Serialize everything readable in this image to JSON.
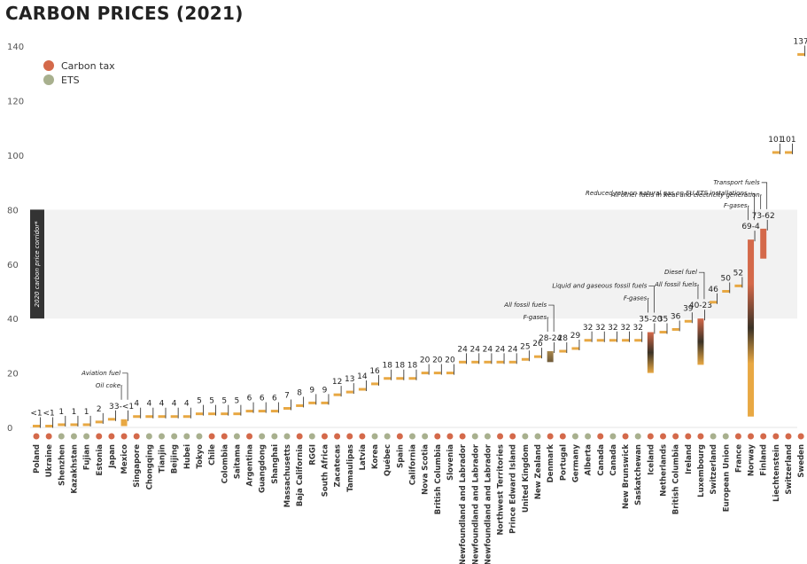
{
  "title": "CARBON PRICES (2021)",
  "legend": [
    {
      "label": "Carbon tax",
      "color": "#d4694a"
    },
    {
      "label": "ETS",
      "color": "#a8b08e"
    }
  ],
  "corridor_label": "2020 carbon price corridor*",
  "chart_data": {
    "type": "bar",
    "ylim": [
      0,
      140
    ],
    "yticks": [
      0,
      20,
      40,
      60,
      80,
      100,
      120,
      140
    ],
    "corridor": [
      40,
      80
    ],
    "grid": false,
    "legend_position": "top-left",
    "colors": {
      "tax": "#d4694a",
      "ets": "#a8b08e",
      "bar": "#e8a843",
      "line": "#222222"
    },
    "categories": [
      "Poland",
      "Ukraine",
      "Shenzhen",
      "Kazakhstan",
      "Fujian",
      "Estonia",
      "Japan",
      "Mexico",
      "Singapore",
      "Chongqing",
      "Tianjin",
      "Beijing",
      "Hubei",
      "Tokyo",
      "Chile",
      "Colombia",
      "Saitama",
      "Argentina",
      "Guangdong",
      "Shanghai",
      "Massachusetts",
      "Baja California",
      "RGGI",
      "South Africa",
      "Zacatecas",
      "Tamaulipas",
      "Latvia",
      "Korea",
      "Québec",
      "Spain",
      "California",
      "Nova Scotia",
      "British Columbia",
      "Slovenia",
      "Newfoundland and Labrador",
      "Newfoundland and Labrador",
      "Newfoundland and Labrador",
      "Northwest Territories",
      "Prince Edward Island",
      "United Kingdom",
      "New Zealand",
      "Denmark",
      "Portugal",
      "Germany",
      "Alberta",
      "Canada",
      "Canada",
      "New Brunswick",
      "Saskatchewan",
      "Iceland",
      "Netherlands",
      "British Columbia",
      "Ireland",
      "Luxembourg",
      "Switzerland",
      "European Union",
      "France",
      "Norway",
      "Finland",
      "Liechtenstein",
      "Switzerland",
      "Sweden"
    ],
    "types": [
      "tax",
      "tax",
      "ets",
      "ets",
      "ets",
      "tax",
      "tax",
      "tax",
      "tax",
      "ets",
      "ets",
      "ets",
      "ets",
      "ets",
      "tax",
      "tax",
      "ets",
      "tax",
      "ets",
      "ets",
      "ets",
      "tax",
      "ets",
      "tax",
      "tax",
      "tax",
      "tax",
      "ets",
      "ets",
      "tax",
      "ets",
      "ets",
      "tax",
      "tax",
      "tax",
      "ets",
      "ets",
      "tax",
      "tax",
      "ets",
      "ets",
      "tax",
      "tax",
      "ets",
      "ets",
      "tax",
      "ets",
      "tax",
      "ets",
      "tax",
      "tax",
      "tax",
      "tax",
      "tax",
      "ets",
      "ets",
      "tax",
      "tax",
      "tax",
      "tax",
      "tax",
      "tax"
    ],
    "low": [
      0.5,
      0.5,
      1,
      1,
      1,
      2,
      3,
      0.5,
      4,
      4,
      4,
      4,
      4,
      5,
      5,
      5,
      5,
      6,
      6,
      6,
      7,
      8,
      9,
      9,
      12,
      13,
      14,
      16,
      18,
      18,
      18,
      20,
      20,
      20,
      24,
      24,
      24,
      24,
      24,
      25,
      26,
      24,
      28,
      29,
      32,
      32,
      32,
      32,
      32,
      20,
      35,
      36,
      39,
      23,
      46,
      50,
      52,
      4,
      62,
      101,
      101,
      137
    ],
    "high": [
      0.5,
      0.5,
      1,
      1,
      1,
      2,
      3,
      3,
      4,
      4,
      4,
      4,
      4,
      5,
      5,
      5,
      5,
      6,
      6,
      6,
      7,
      8,
      9,
      9,
      12,
      13,
      14,
      16,
      18,
      18,
      18,
      20,
      20,
      20,
      24,
      24,
      24,
      24,
      24,
      25,
      26,
      28,
      28,
      29,
      32,
      32,
      32,
      32,
      32,
      35,
      35,
      36,
      39,
      40,
      46,
      50,
      52,
      69,
      73,
      101,
      101,
      137
    ],
    "labels": [
      "<1",
      "<1",
      "1",
      "1",
      "1",
      "2",
      "3",
      "3-<1",
      "4",
      "4",
      "4",
      "4",
      "4",
      "5",
      "5",
      "5",
      "5",
      "6",
      "6",
      "6",
      "7",
      "8",
      "9",
      "9",
      "12",
      "13",
      "14",
      "16",
      "18",
      "18",
      "18",
      "20",
      "20",
      "20",
      "24",
      "24",
      "24",
      "24",
      "24",
      "25",
      "26",
      "28-24",
      "28",
      "29",
      "32",
      "32",
      "32",
      "32",
      "32",
      "35-20",
      "35",
      "36",
      "39",
      "40-23",
      "46",
      "50",
      "52",
      "69-4",
      "73-62",
      "101",
      "101",
      "137"
    ],
    "annotations": [
      {
        "index": 7,
        "texts": [
          "Oil coke",
          "Aviation fuel"
        ]
      },
      {
        "index": 41,
        "texts": [
          "F-gases",
          "All fossil fuels"
        ]
      },
      {
        "index": 49,
        "texts": [
          "F-gases",
          "Liquid and gaseous fossil fuels"
        ]
      },
      {
        "index": 53,
        "texts": [
          "All fossil fuels",
          "Diesel fuel"
        ]
      },
      {
        "index": 57,
        "texts": [
          "F-gases",
          "Reduced rate on natural gas on EU ETS installations"
        ]
      },
      {
        "index": 58,
        "texts": [
          "All other fuels in heat and electricity generation",
          "Transport fuels"
        ]
      }
    ]
  }
}
